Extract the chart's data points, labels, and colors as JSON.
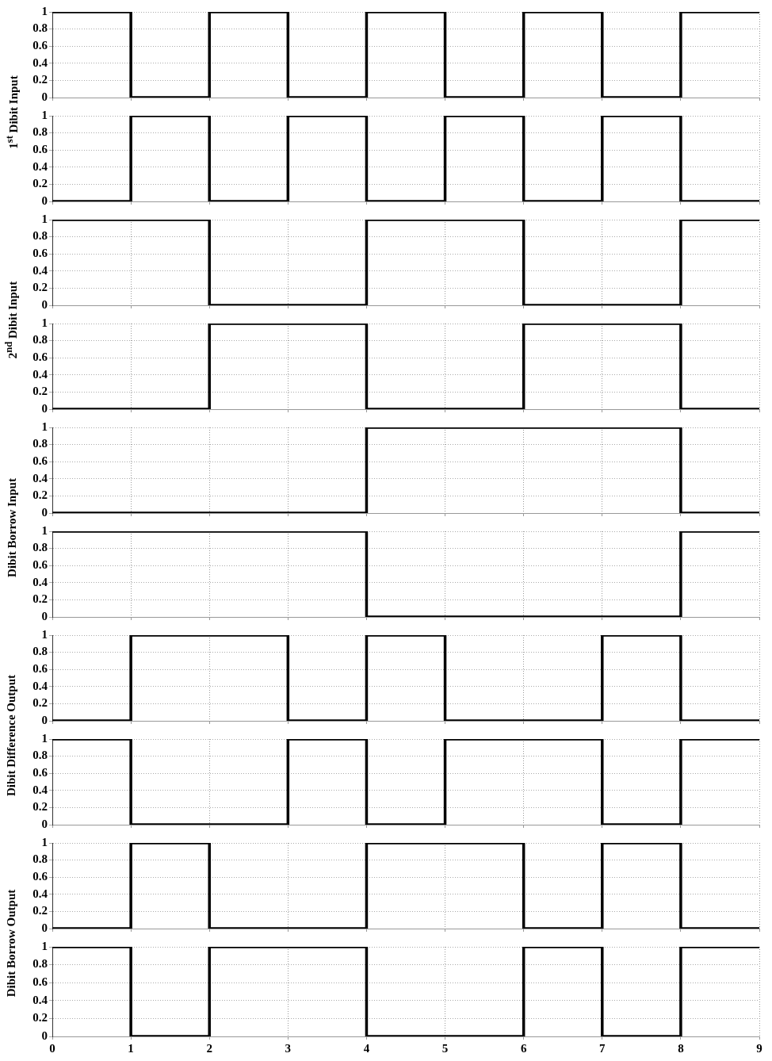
{
  "chart_data": [
    {
      "type": "step",
      "ylabel": "1$^{st}$ Dibit Input",
      "x": [
        0,
        1,
        2,
        3,
        4,
        5,
        6,
        7,
        8,
        9
      ],
      "series": [
        {
          "color": "#000000",
          "values": [
            1,
            0,
            1,
            0,
            1,
            0,
            1,
            0,
            1,
            1
          ]
        }
      ],
      "xlim": [
        0,
        9
      ],
      "xticks": [
        0,
        1,
        2,
        3,
        4,
        5,
        6,
        7,
        8,
        9
      ],
      "ylim": [
        0,
        1
      ],
      "yticks": [
        0,
        0.2,
        0.4,
        0.6,
        0.8,
        1
      ],
      "grid": true,
      "tick_labels": "y"
    },
    {
      "type": "step",
      "x": [
        0,
        1,
        2,
        3,
        4,
        5,
        6,
        7,
        8,
        9
      ],
      "series": [
        {
          "color": "#000000",
          "values": [
            0,
            1,
            0,
            1,
            0,
            1,
            0,
            1,
            0,
            0
          ]
        }
      ],
      "xlim": [
        0,
        9
      ],
      "xticks": [
        0,
        1,
        2,
        3,
        4,
        5,
        6,
        7,
        8,
        9
      ],
      "ylim": [
        0,
        1
      ],
      "yticks": [
        0,
        0.2,
        0.4,
        0.6,
        0.8,
        1
      ],
      "grid": true,
      "tick_labels": "y"
    },
    {
      "type": "step",
      "ylabel": "2$^{nd}$ Dibit Input",
      "x": [
        0,
        1,
        2,
        3,
        4,
        5,
        6,
        7,
        8,
        9
      ],
      "series": [
        {
          "color": "#000000",
          "values": [
            1,
            1,
            0,
            0,
            1,
            1,
            0,
            0,
            1,
            1
          ]
        }
      ],
      "xlim": [
        0,
        9
      ],
      "xticks": [
        0,
        1,
        2,
        3,
        4,
        5,
        6,
        7,
        8,
        9
      ],
      "ylim": [
        0,
        1
      ],
      "yticks": [
        0,
        0.2,
        0.4,
        0.6,
        0.8,
        1
      ],
      "grid": true,
      "tick_labels": "y"
    },
    {
      "type": "step",
      "x": [
        0,
        1,
        2,
        3,
        4,
        5,
        6,
        7,
        8,
        9
      ],
      "series": [
        {
          "color": "#000000",
          "values": [
            0,
            0,
            1,
            1,
            0,
            0,
            1,
            1,
            0,
            0
          ]
        }
      ],
      "xlim": [
        0,
        9
      ],
      "xticks": [
        0,
        1,
        2,
        3,
        4,
        5,
        6,
        7,
        8,
        9
      ],
      "ylim": [
        0,
        1
      ],
      "yticks": [
        0,
        0.2,
        0.4,
        0.6,
        0.8,
        1
      ],
      "grid": true,
      "tick_labels": "y"
    },
    {
      "type": "step",
      "ylabel": "Dibit Borrow Input",
      "x": [
        0,
        1,
        2,
        3,
        4,
        5,
        6,
        7,
        8,
        9
      ],
      "series": [
        {
          "color": "#000000",
          "values": [
            0,
            0,
            0,
            0,
            1,
            1,
            1,
            1,
            0,
            0
          ]
        }
      ],
      "xlim": [
        0,
        9
      ],
      "xticks": [
        0,
        1,
        2,
        3,
        4,
        5,
        6,
        7,
        8,
        9
      ],
      "ylim": [
        0,
        1
      ],
      "yticks": [
        0,
        0.2,
        0.4,
        0.6,
        0.8,
        1
      ],
      "grid": true,
      "tick_labels": "y"
    },
    {
      "type": "step",
      "x": [
        0,
        1,
        2,
        3,
        4,
        5,
        6,
        7,
        8,
        9
      ],
      "series": [
        {
          "color": "#000000",
          "values": [
            1,
            1,
            1,
            1,
            0,
            0,
            0,
            0,
            1,
            1
          ]
        }
      ],
      "xlim": [
        0,
        9
      ],
      "xticks": [
        0,
        1,
        2,
        3,
        4,
        5,
        6,
        7,
        8,
        9
      ],
      "ylim": [
        0,
        1
      ],
      "yticks": [
        0,
        0.2,
        0.4,
        0.6,
        0.8,
        1
      ],
      "grid": true,
      "tick_labels": "y"
    },
    {
      "type": "step",
      "ylabel": "Dibit Difference Output",
      "x": [
        0,
        1,
        2,
        3,
        4,
        5,
        6,
        7,
        8,
        9
      ],
      "series": [
        {
          "color": "#000000",
          "values": [
            0,
            1,
            1,
            0,
            1,
            0,
            0,
            1,
            0,
            0
          ]
        }
      ],
      "xlim": [
        0,
        9
      ],
      "xticks": [
        0,
        1,
        2,
        3,
        4,
        5,
        6,
        7,
        8,
        9
      ],
      "ylim": [
        0,
        1
      ],
      "yticks": [
        0,
        0.2,
        0.4,
        0.6,
        0.8,
        1
      ],
      "grid": true,
      "tick_labels": "y"
    },
    {
      "type": "step",
      "x": [
        0,
        1,
        2,
        3,
        4,
        5,
        6,
        7,
        8,
        9
      ],
      "series": [
        {
          "color": "#000000",
          "values": [
            1,
            0,
            0,
            1,
            0,
            1,
            1,
            0,
            1,
            1
          ]
        }
      ],
      "xlim": [
        0,
        9
      ],
      "xticks": [
        0,
        1,
        2,
        3,
        4,
        5,
        6,
        7,
        8,
        9
      ],
      "ylim": [
        0,
        1
      ],
      "yticks": [
        0,
        0.2,
        0.4,
        0.6,
        0.8,
        1
      ],
      "grid": true,
      "tick_labels": "y"
    },
    {
      "type": "step",
      "ylabel": "Dibit Borrow Output",
      "x": [
        0,
        1,
        2,
        3,
        4,
        5,
        6,
        7,
        8,
        9
      ],
      "series": [
        {
          "color": "#000000",
          "values": [
            0,
            1,
            0,
            0,
            1,
            1,
            0,
            1,
            0,
            0
          ]
        }
      ],
      "xlim": [
        0,
        9
      ],
      "xticks": [
        0,
        1,
        2,
        3,
        4,
        5,
        6,
        7,
        8,
        9
      ],
      "ylim": [
        0,
        1
      ],
      "yticks": [
        0,
        0.2,
        0.4,
        0.6,
        0.8,
        1
      ],
      "grid": true,
      "tick_labels": "y"
    },
    {
      "type": "step",
      "x": [
        0,
        1,
        2,
        3,
        4,
        5,
        6,
        7,
        8,
        9
      ],
      "series": [
        {
          "color": "#000000",
          "values": [
            1,
            0,
            1,
            1,
            0,
            0,
            1,
            0,
            1,
            1
          ]
        }
      ],
      "xlim": [
        0,
        9
      ],
      "xticks": [
        0,
        1,
        2,
        3,
        4,
        5,
        6,
        7,
        8,
        9
      ],
      "ylim": [
        0,
        1
      ],
      "yticks": [
        0,
        0.2,
        0.4,
        0.6,
        0.8,
        1
      ],
      "grid": true
    }
  ]
}
